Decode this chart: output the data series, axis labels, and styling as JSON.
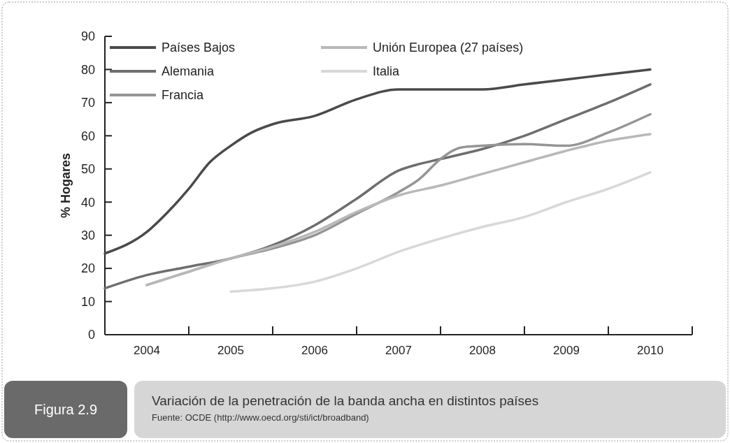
{
  "chart_data": {
    "type": "line",
    "title": "Variación de la penetración de la banda ancha en distintos países",
    "subtitle": "Figura 2.9",
    "ylabel": "% Hogares",
    "annotations": [
      "Fuente: OCDE (http://www.oecd.org/sti/ict/broadband)"
    ],
    "legend": "top left",
    "grid": false,
    "marker": "none",
    "line_style": "solid",
    "xlim": [
      2003.5,
      2010.5
    ],
    "xticks": [
      2004,
      {
        "value": 2004.5,
        "label": null
      },
      2005,
      {
        "value": 2005.5,
        "label": null
      },
      2006,
      {
        "value": 2006.5,
        "label": null
      },
      2007,
      {
        "value": 2007.5,
        "label": null
      },
      2008,
      {
        "value": 2008.5,
        "label": null
      },
      2009,
      {
        "value": 2009.5,
        "label": null
      },
      2010,
      {
        "value": 2010.5,
        "label": null
      }
    ],
    "ylim": [
      0,
      90
    ],
    "yticks": [
      0,
      10,
      20,
      30,
      40,
      50,
      60,
      70,
      80,
      90
    ],
    "series": [
      {
        "name": "Países Bajos",
        "color": "#4a4a4a",
        "x": [
          2003.5,
          2004,
          2004.25,
          2004.5,
          2004.75,
          2005,
          2005.25,
          2005.5,
          2006,
          2006.5,
          2007,
          2007.5,
          2008,
          2008.5,
          2009,
          2009.5,
          2010
        ],
        "values": [
          24.5,
          31,
          37,
          44,
          52,
          57,
          61,
          63.5,
          66,
          71,
          74,
          74,
          74,
          75.5,
          77,
          78.5,
          80
        ]
      },
      {
        "name": "Alemania",
        "color": "#6e6e6e",
        "x": [
          2003.5,
          2004,
          2004.5,
          2005,
          2005.5,
          2006,
          2006.5,
          2007,
          2007.25,
          2007.5,
          2008,
          2008.5,
          2009,
          2009.5,
          2010
        ],
        "values": [
          14,
          18,
          20.5,
          23,
          27,
          33,
          41,
          49.5,
          51.5,
          53,
          56,
          60,
          65,
          70,
          75.5
        ]
      },
      {
        "name": "Francia",
        "color": "#959595",
        "x": [
          2004,
          2004.5,
          2005,
          2005.5,
          2006,
          2006.5,
          2007,
          2007.25,
          2007.5,
          2007.75,
          2008,
          2008.5,
          2009,
          2009.5,
          2010
        ],
        "values": [
          15,
          19,
          23,
          26,
          30,
          36.5,
          43,
          47,
          53,
          56.5,
          57,
          57.5,
          57,
          61,
          66.5
        ]
      },
      {
        "name": "Unión Europea (27 países)",
        "color": "#b8b8b8",
        "x": [
          2004,
          2004.5,
          2005,
          2005.5,
          2006,
          2006.5,
          2007,
          2007.5,
          2008,
          2008.5,
          2009,
          2009.5,
          2010
        ],
        "values": [
          15,
          19,
          23,
          26.5,
          31,
          37,
          42,
          45,
          48.5,
          52,
          55.5,
          58.5,
          60.5
        ]
      },
      {
        "name": "Italia",
        "color": "#d8d8d8",
        "x": [
          2005,
          2005.5,
          2006,
          2006.5,
          2007,
          2007.5,
          2008,
          2008.5,
          2009,
          2009.5,
          2010
        ],
        "values": [
          13,
          14,
          16,
          20,
          25,
          29,
          32.5,
          35.5,
          40,
          44,
          49
        ]
      }
    ]
  }
}
